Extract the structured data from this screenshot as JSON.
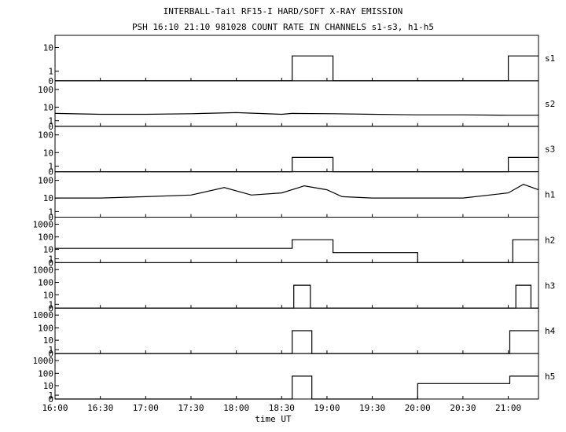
{
  "title": "INTERBALL-Tail RF15-I HARD/SOFT X-RAY EMISSION",
  "subtitle": "PSH 16:10 21:10 981028  COUNT RATE IN CHANNELS s1-s3, h1-h5",
  "chart_data": {
    "type": "line",
    "title": "INTERBALL-Tail RF15-I HARD/SOFT X-RAY EMISSION",
    "subtitle": "PSH 16:10 21:10 981028  COUNT RATE IN CHANNELS s1-s3, h1-h5",
    "xlabel": "time UT",
    "x_ticks": [
      "16:00",
      "16:30",
      "17:00",
      "17:30",
      "18:00",
      "18:30",
      "19:00",
      "19:30",
      "20:00",
      "20:30",
      "21:00"
    ],
    "xlim": [
      "16:00",
      "21:20"
    ],
    "y_scale": "log",
    "grid": false,
    "panels": [
      {
        "name": "s1",
        "y_ticks": [
          "10",
          "1",
          "0"
        ],
        "ylim": [
          0,
          20
        ],
        "points": [
          [
            "16:00",
            0
          ],
          [
            "18:37",
            0
          ],
          [
            "18:37",
            5
          ],
          [
            "19:04",
            5
          ],
          [
            "19:04",
            0
          ],
          [
            "21:00",
            0
          ],
          [
            "21:00",
            5
          ],
          [
            "21:20",
            5
          ]
        ]
      },
      {
        "name": "s2",
        "y_ticks": [
          "100",
          "10",
          "1",
          "0"
        ],
        "ylim": [
          0,
          200
        ],
        "points": [
          [
            "16:00",
            4
          ],
          [
            "16:30",
            3.5
          ],
          [
            "17:00",
            3.5
          ],
          [
            "17:30",
            3.8
          ],
          [
            "18:00",
            4.5
          ],
          [
            "18:30",
            3.5
          ],
          [
            "18:37",
            4
          ],
          [
            "19:04",
            3.8
          ],
          [
            "19:30",
            3.5
          ],
          [
            "20:00",
            3.2
          ],
          [
            "20:30",
            3.2
          ],
          [
            "21:00",
            3
          ],
          [
            "21:20",
            3
          ]
        ]
      },
      {
        "name": "s3",
        "y_ticks": [
          "100",
          "10",
          "1",
          "0"
        ],
        "ylim": [
          0,
          200
        ],
        "points": [
          [
            "16:00",
            0
          ],
          [
            "18:37",
            0
          ],
          [
            "18:37",
            5
          ],
          [
            "19:04",
            5
          ],
          [
            "19:04",
            0
          ],
          [
            "21:00",
            0
          ],
          [
            "21:00",
            5
          ],
          [
            "21:20",
            5
          ]
        ]
      },
      {
        "name": "h1",
        "y_ticks": [
          "100",
          "10",
          "1",
          "0"
        ],
        "ylim": [
          0,
          200
        ],
        "points": [
          [
            "16:00",
            10
          ],
          [
            "16:30",
            10
          ],
          [
            "17:00",
            12
          ],
          [
            "17:30",
            15
          ],
          [
            "17:52",
            40
          ],
          [
            "18:10",
            15
          ],
          [
            "18:30",
            20
          ],
          [
            "18:45",
            50
          ],
          [
            "19:00",
            30
          ],
          [
            "19:10",
            12
          ],
          [
            "19:30",
            10
          ],
          [
            "20:00",
            10
          ],
          [
            "20:30",
            10
          ],
          [
            "21:00",
            20
          ],
          [
            "21:10",
            60
          ],
          [
            "21:20",
            30
          ]
        ]
      },
      {
        "name": "h2",
        "y_ticks": [
          "1000",
          "100",
          "10",
          "1",
          "0"
        ],
        "ylim": [
          0,
          2000
        ],
        "points": [
          [
            "16:00",
            12
          ],
          [
            "18:37",
            12
          ],
          [
            "18:37",
            60
          ],
          [
            "19:04",
            60
          ],
          [
            "19:04",
            5
          ],
          [
            "20:00",
            5
          ],
          [
            "20:00",
            0
          ],
          [
            "21:03",
            0
          ],
          [
            "21:03",
            60
          ],
          [
            "21:20",
            60
          ]
        ]
      },
      {
        "name": "h3",
        "y_ticks": [
          "1000",
          "100",
          "10",
          "1",
          "0"
        ],
        "ylim": [
          0,
          2000
        ],
        "points": [
          [
            "16:00",
            0
          ],
          [
            "18:38",
            0
          ],
          [
            "18:38",
            60
          ],
          [
            "18:49",
            60
          ],
          [
            "18:49",
            0
          ],
          [
            "21:05",
            0
          ],
          [
            "21:05",
            60
          ],
          [
            "21:15",
            60
          ],
          [
            "21:15",
            0
          ],
          [
            "21:20",
            0
          ]
        ]
      },
      {
        "name": "h4",
        "y_ticks": [
          "1000",
          "100",
          "10",
          "1",
          "0"
        ],
        "ylim": [
          0,
          2000
        ],
        "points": [
          [
            "16:00",
            0
          ],
          [
            "18:37",
            0
          ],
          [
            "18:37",
            60
          ],
          [
            "18:50",
            60
          ],
          [
            "18:50",
            0
          ],
          [
            "21:01",
            0
          ],
          [
            "21:01",
            60
          ],
          [
            "21:20",
            60
          ]
        ]
      },
      {
        "name": "h5",
        "y_ticks": [
          "1000",
          "100",
          "10",
          "1",
          "0"
        ],
        "ylim": [
          0,
          2000
        ],
        "points": [
          [
            "16:00",
            0
          ],
          [
            "18:37",
            0
          ],
          [
            "18:37",
            60
          ],
          [
            "18:50",
            60
          ],
          [
            "18:50",
            0
          ],
          [
            "20:00",
            0
          ],
          [
            "20:00",
            15
          ],
          [
            "21:01",
            15
          ],
          [
            "21:01",
            60
          ],
          [
            "21:20",
            60
          ]
        ]
      }
    ]
  }
}
